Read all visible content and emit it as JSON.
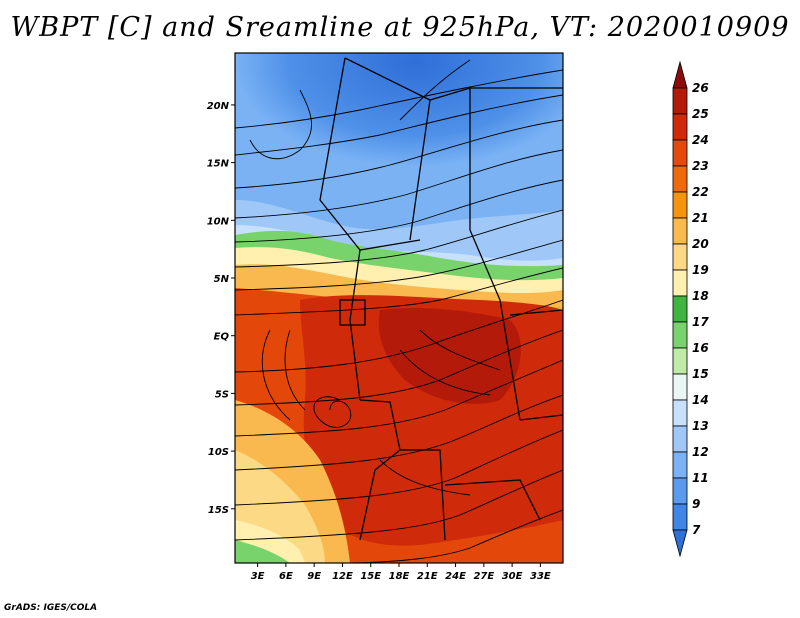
{
  "title": "WBPT [C] and Sreamline at 925hPa, VT: 2020010909",
  "footer": "GrADS: IGES/COLA",
  "map": {
    "lat_labels": [
      {
        "text": "20N",
        "lat": 20
      },
      {
        "text": "15N",
        "lat": 15
      },
      {
        "text": "10N",
        "lat": 10
      },
      {
        "text": "5N",
        "lat": 5
      },
      {
        "text": "EQ",
        "lat": 0
      },
      {
        "text": "5S",
        "lat": -5
      },
      {
        "text": "10S",
        "lat": -10
      },
      {
        "text": "15S",
        "lat": -15
      }
    ],
    "lon_labels": [
      {
        "text": "3E",
        "lon": 3
      },
      {
        "text": "6E",
        "lon": 6
      },
      {
        "text": "9E",
        "lon": 9
      },
      {
        "text": "12E",
        "lon": 12
      },
      {
        "text": "15E",
        "lon": 15
      },
      {
        "text": "18E",
        "lon": 18
      },
      {
        "text": "21E",
        "lon": 21
      },
      {
        "text": "24E",
        "lon": 24
      },
      {
        "text": "27E",
        "lon": 27
      },
      {
        "text": "30E",
        "lon": 30
      },
      {
        "text": "33E",
        "lon": 33
      }
    ],
    "lon_range": [
      0.6,
      35.4
    ],
    "lat_range": [
      -19.7,
      24.5
    ]
  },
  "colorbar": {
    "levels": [
      "7",
      "9",
      "11",
      "12",
      "13",
      "14",
      "15",
      "16",
      "17",
      "18",
      "19",
      "20",
      "21",
      "22",
      "23",
      "24",
      "25",
      "26"
    ],
    "colors": [
      "#2f6fd8",
      "#3f86e6",
      "#5a9bef",
      "#7ab2f4",
      "#9fc8f8",
      "#c7e0fb",
      "#e9f6f4",
      "#bfeaa7",
      "#78d36c",
      "#3fb540",
      "#fff0b0",
      "#fcd985",
      "#f9b94e",
      "#f5950f",
      "#ee6a0a",
      "#e44a0a",
      "#cf2a0a",
      "#b31a0a",
      "#8e0a0a"
    ]
  }
}
